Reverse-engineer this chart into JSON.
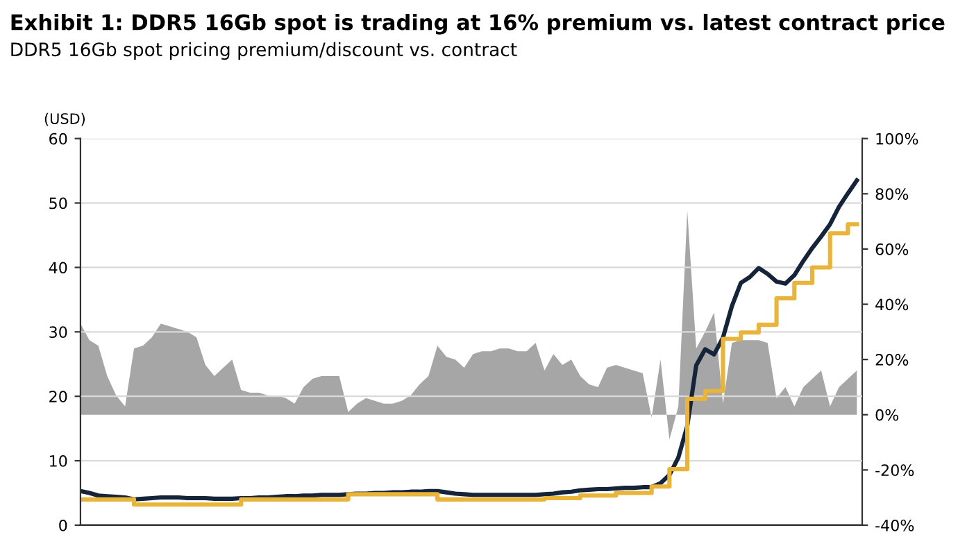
{
  "chart_data": {
    "type": "line",
    "title": "Exhibit 1: DDR5 16Gb spot is trading at 16% premium vs. latest contract price",
    "subtitle": "DDR5 16Gb spot pricing premium/discount vs. contract",
    "ylabel": "(USD)",
    "categories": [
      null,
      null,
      null,
      null,
      null,
      null,
      null,
      null,
      null,
      null,
      null,
      null,
      null,
      null,
      null,
      null,
      null,
      null,
      null,
      null,
      null,
      null,
      null,
      null,
      null,
      null,
      null,
      null,
      null,
      null,
      null,
      null,
      null,
      null,
      null,
      null,
      null,
      null,
      null,
      null,
      null,
      null,
      null,
      null,
      null,
      null,
      null,
      null,
      null,
      null,
      null,
      null,
      null,
      null,
      null,
      null,
      null,
      null,
      null,
      null,
      null,
      null,
      null,
      null,
      null,
      null,
      null,
      null,
      null,
      null,
      null,
      null,
      null,
      null,
      null,
      null,
      null,
      null,
      null,
      null,
      null,
      null,
      null,
      null,
      null,
      null,
      null,
      null
    ],
    "ylim": [
      0,
      60
    ],
    "yticks": [
      0,
      10,
      20,
      30,
      40,
      50,
      60
    ],
    "y2lim": [
      -40,
      100
    ],
    "y2ticks": [
      {
        "value": -40,
        "label": "-40%"
      },
      {
        "value": -20,
        "label": "-20%"
      },
      {
        "value": 0,
        "label": "0%"
      },
      {
        "value": 20,
        "label": "20%"
      },
      {
        "value": 40,
        "label": "40%"
      },
      {
        "value": 60,
        "label": "60%"
      },
      {
        "value": 80,
        "label": "80%"
      },
      {
        "value": 100,
        "label": "100%"
      }
    ],
    "grid": "y",
    "series": [
      {
        "type": "area",
        "axis": "y2",
        "color": "#a6a6a6",
        "values": [
          33,
          27,
          25,
          14,
          7,
          3,
          24,
          25,
          28,
          33,
          32,
          31,
          30,
          28,
          18,
          14,
          17,
          20,
          9,
          8,
          8,
          7,
          7,
          6,
          4,
          10,
          13,
          14,
          14,
          14,
          1,
          4,
          6,
          5,
          4,
          4,
          5,
          7,
          11,
          14,
          25,
          21,
          20,
          17,
          22,
          23,
          23,
          24,
          24,
          23,
          23,
          26,
          16,
          22,
          18,
          20,
          14,
          11,
          10,
          17,
          18,
          17,
          16,
          15,
          -1,
          20,
          -9,
          3,
          74,
          24,
          30,
          37,
          4,
          26,
          27,
          27,
          27,
          26,
          6,
          10,
          3,
          10,
          13,
          16,
          3,
          10,
          13,
          16
        ]
      },
      {
        "color": "#16243a",
        "values": [
          5.3,
          5.0,
          4.6,
          4.5,
          4.4,
          4.3,
          4.0,
          4.1,
          4.2,
          4.3,
          4.3,
          4.3,
          4.2,
          4.2,
          4.2,
          4.1,
          4.1,
          4.1,
          4.2,
          4.2,
          4.3,
          4.3,
          4.4,
          4.5,
          4.5,
          4.6,
          4.6,
          4.7,
          4.7,
          4.7,
          4.8,
          4.9,
          4.9,
          5.0,
          5.0,
          5.1,
          5.1,
          5.2,
          5.2,
          5.3,
          5.3,
          5.1,
          4.9,
          4.8,
          4.7,
          4.7,
          4.7,
          4.7,
          4.7,
          4.7,
          4.7,
          4.7,
          4.8,
          4.9,
          5.1,
          5.2,
          5.4,
          5.5,
          5.6,
          5.6,
          5.7,
          5.8,
          5.8,
          5.9,
          5.9,
          6.5,
          7.8,
          10.5,
          15.4,
          24.8,
          27.3,
          26.5,
          29.1,
          34.0,
          37.6,
          38.5,
          39.9,
          39.0,
          37.8,
          37.5,
          38.8,
          41.0,
          43.0,
          44.8,
          46.7,
          49.4,
          51.5,
          53.5
        ]
      },
      {
        "type": "step",
        "color": "#e8b43a",
        "values": [
          4.0,
          4.0,
          4.0,
          4.0,
          4.0,
          4.0,
          3.2,
          3.2,
          3.2,
          3.2,
          3.2,
          3.2,
          3.2,
          3.2,
          3.2,
          3.2,
          3.2,
          3.2,
          4.0,
          4.0,
          4.0,
          4.0,
          4.0,
          4.0,
          4.0,
          4.0,
          4.0,
          4.0,
          4.0,
          4.0,
          4.8,
          4.8,
          4.8,
          4.8,
          4.8,
          4.8,
          4.8,
          4.8,
          4.8,
          4.8,
          4.0,
          4.0,
          4.0,
          4.0,
          4.0,
          4.0,
          4.0,
          4.0,
          4.0,
          4.0,
          4.0,
          4.0,
          4.2,
          4.2,
          4.2,
          4.2,
          4.6,
          4.6,
          4.6,
          4.6,
          5.0,
          5.0,
          5.0,
          5.0,
          6.0,
          6.0,
          8.7,
          8.7,
          19.6,
          19.6,
          20.8,
          20.8,
          28.9,
          28.9,
          29.9,
          29.9,
          31.1,
          31.1,
          35.2,
          35.2,
          37.6,
          37.6,
          40.0,
          40.0,
          45.3,
          45.3,
          46.7,
          46.7
        ]
      }
    ]
  }
}
